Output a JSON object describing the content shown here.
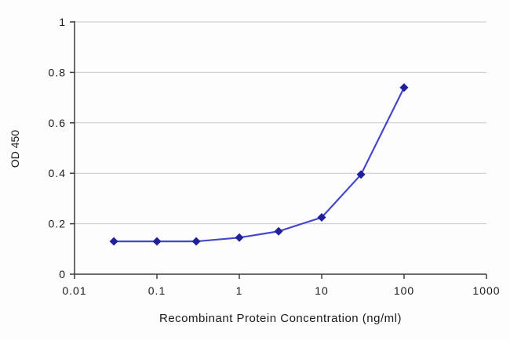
{
  "chart_data": {
    "type": "line",
    "title": "",
    "xlabel": "Recombinant Protein Concentration (ng/ml)",
    "ylabel": "OD 450",
    "x_scale": "log",
    "xlim": [
      0.01,
      1000
    ],
    "ylim": [
      0,
      1
    ],
    "x_ticks": [
      0.01,
      0.1,
      1,
      10,
      100,
      1000
    ],
    "x_tick_labels": [
      "0.01",
      "0.1",
      "1",
      "10",
      "100",
      "1000"
    ],
    "y_ticks": [
      0,
      0.2,
      0.4,
      0.6,
      0.8,
      1
    ],
    "y_tick_labels": [
      "0",
      "0.2",
      "0.4",
      "0.6",
      "0.8",
      "1"
    ],
    "grid": true,
    "legend_position": "none",
    "series": [
      {
        "name": "OD 450",
        "x": [
          0.03,
          0.1,
          0.3,
          1,
          3,
          10,
          30,
          100
        ],
        "y": [
          0.13,
          0.13,
          0.13,
          0.145,
          0.17,
          0.225,
          0.395,
          0.74
        ],
        "line_color": "#4646cd",
        "marker": "diamond",
        "marker_color": "#20209b"
      }
    ],
    "colors": {
      "grid": "#c9c9c9",
      "axis": "#3c3c3c",
      "text": "#1a1a1a",
      "background": "#fdfdfd"
    }
  }
}
